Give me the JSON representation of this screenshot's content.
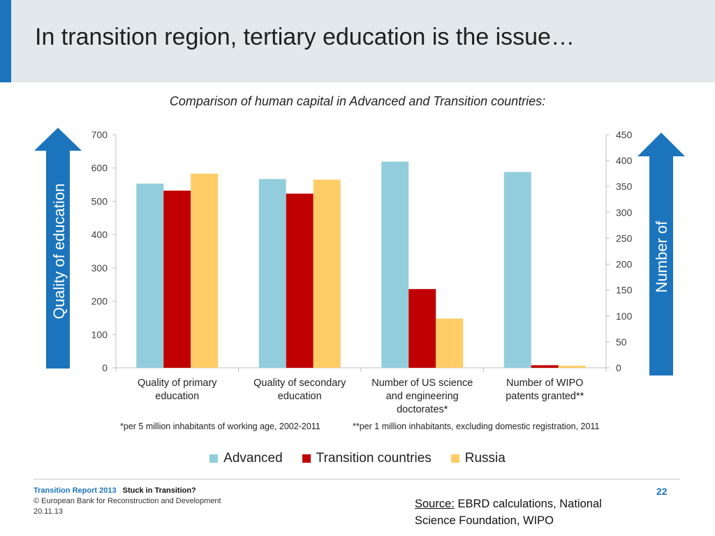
{
  "page": {
    "title": "In transition region, tertiary education is the issue…",
    "subtitle": "Comparison of human capital in Advanced and Transition countries:",
    "left_arrow_label": "Quality of education",
    "right_arrow_label": "Number of",
    "footnote_left": "*per 5 million inhabitants of working age, 2002-2011",
    "footnote_right": "**per 1 million inhabitants, excluding domestic registration, 2011",
    "footer_report": "Transition Report 2013",
    "footer_stuck": "Stuck in Transition?",
    "footer_copyright": "© European Bank for Reconstruction and Development",
    "footer_date": "20.11.13",
    "page_number": "22",
    "source_label": "Source:",
    "source_text": " EBRD calculations, National Science Foundation, WIPO"
  },
  "colors": {
    "accent": "#1c75bc",
    "advanced": "#92cddc",
    "transition": "#c00000",
    "russia": "#ffcc66"
  },
  "chart_data": {
    "type": "bar",
    "categories": [
      [
        "Quality of primary",
        "education"
      ],
      [
        "Quality of secondary",
        "education"
      ],
      [
        "Number of US science",
        "and engineering",
        "doctorates*"
      ],
      [
        "Number of WIPO",
        "patents granted**"
      ]
    ],
    "series": [
      {
        "name": "Advanced",
        "values": [
          553,
          567,
          398,
          378
        ]
      },
      {
        "name": "Transition countries",
        "values": [
          532,
          523,
          152,
          5
        ]
      },
      {
        "name": "Russia",
        "values": [
          583,
          565,
          95,
          4
        ]
      }
    ],
    "value_axis_per_category": [
      "left",
      "left",
      "right",
      "right"
    ],
    "y_left": {
      "min": 0,
      "max": 700,
      "ticks": [
        0,
        100,
        200,
        300,
        400,
        500,
        600,
        700
      ]
    },
    "y_right": {
      "min": 0,
      "max": 450,
      "ticks": [
        0,
        50,
        100,
        150,
        200,
        250,
        300,
        350,
        400,
        450
      ]
    },
    "grid": false,
    "legend_position": "bottom"
  }
}
